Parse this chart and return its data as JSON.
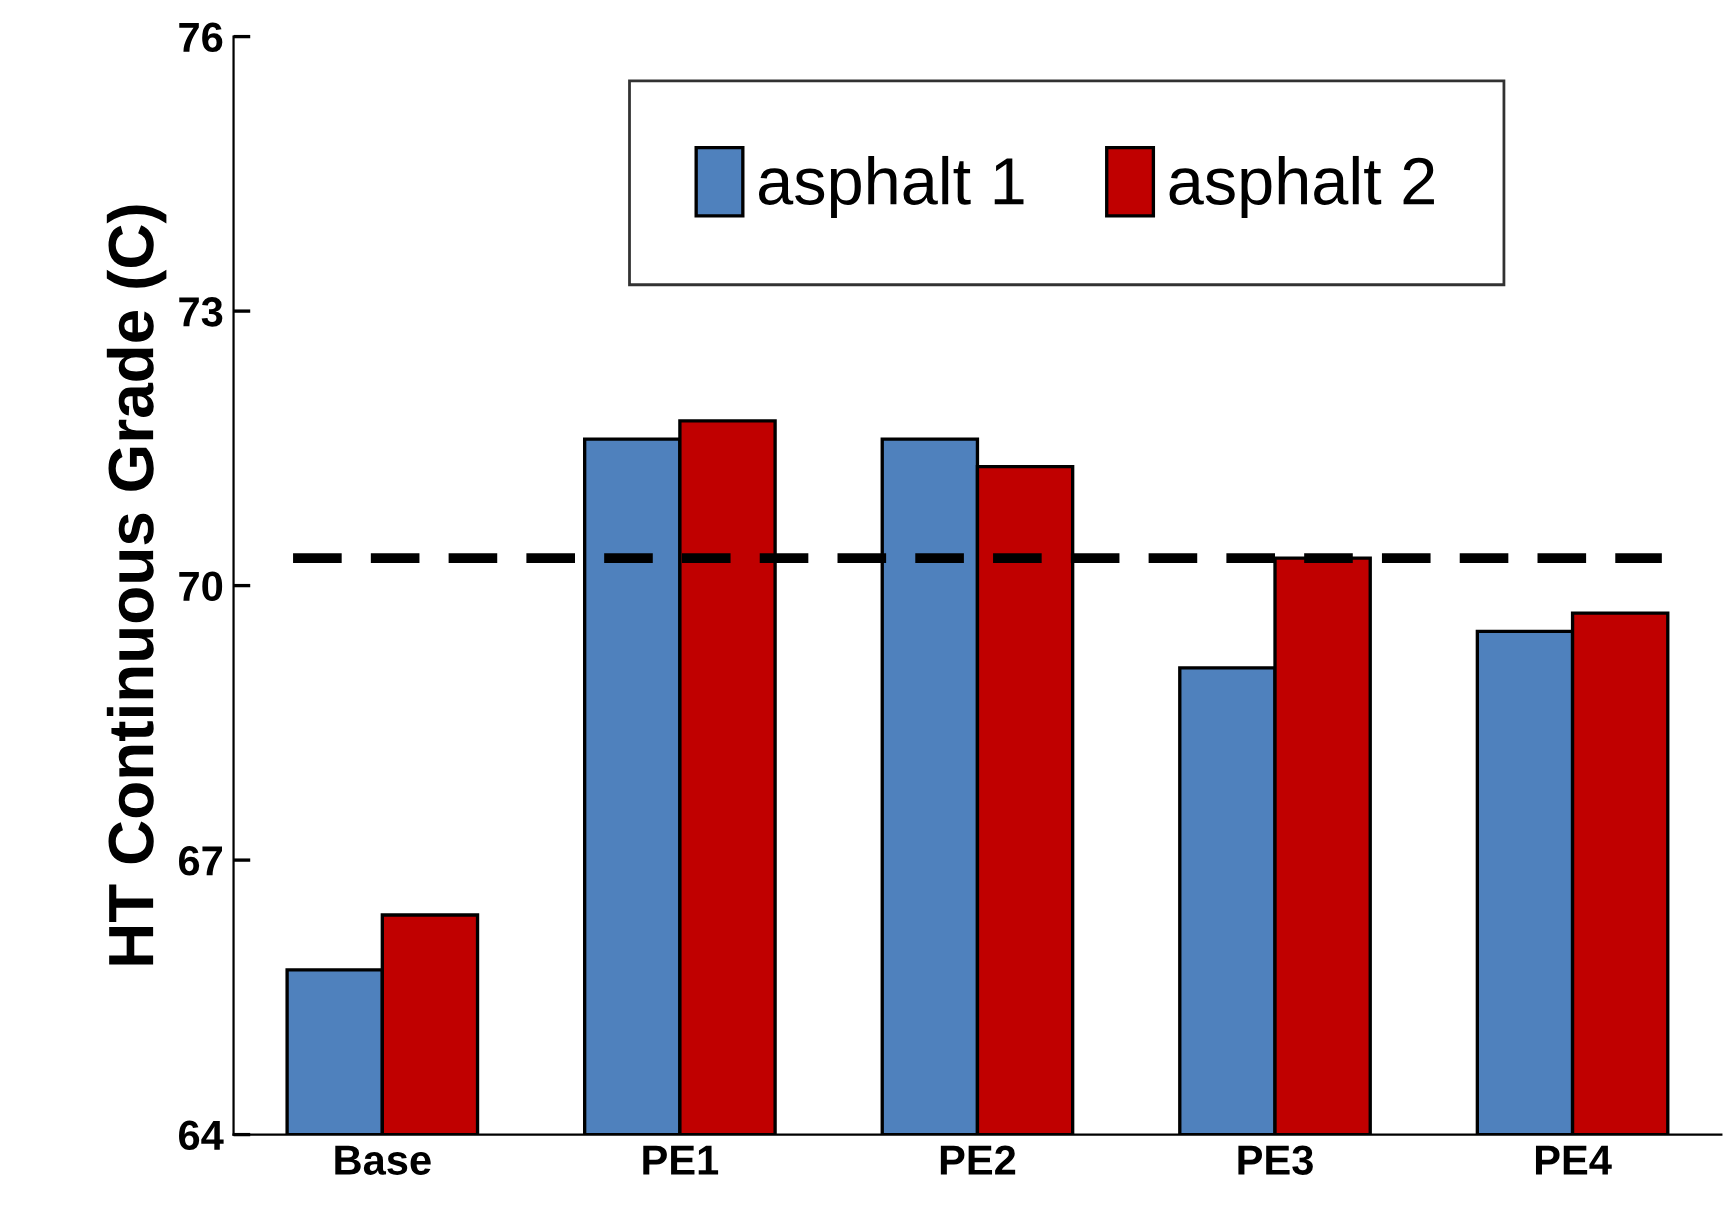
{
  "chart_data": {
    "type": "bar",
    "ylabel": "HT Continuous Grade (C)",
    "categories": [
      "Base",
      "PE1",
      "PE2",
      "PE3",
      "PE4"
    ],
    "series": [
      {
        "name": "asphalt 1",
        "color": "#4f81bd",
        "values": [
          65.8,
          71.6,
          71.6,
          69.1,
          69.5
        ]
      },
      {
        "name": "asphalt 2",
        "color": "#c00000",
        "values": [
          66.4,
          71.8,
          71.3,
          70.3,
          69.7
        ]
      }
    ],
    "ylim": [
      64,
      76
    ],
    "yticks": [
      64,
      67,
      70,
      73,
      76
    ],
    "grid": false,
    "legend": "top",
    "ref_lines": [
      {
        "axis": "y",
        "value": 70.3,
        "color": "#000000",
        "line_style": "dashed"
      }
    ]
  }
}
